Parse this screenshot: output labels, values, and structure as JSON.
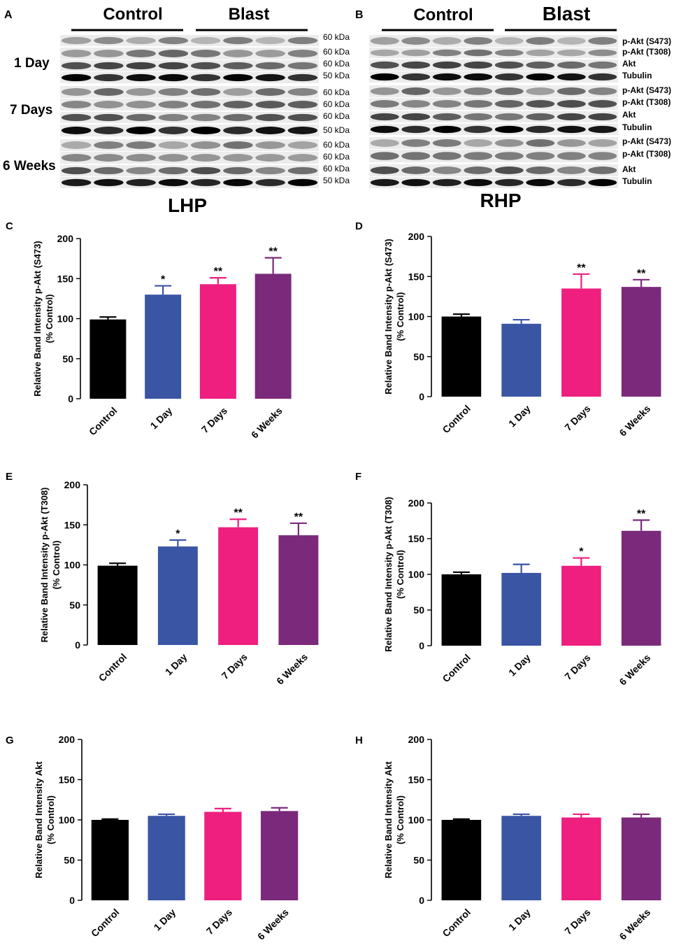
{
  "colors": {
    "Control": "#000000",
    "1 Day": "#3a55a4",
    "7 Days": "#ee1f7f",
    "6 Weeks": "#7b2a7b"
  },
  "blots": {
    "A": {
      "panel_letter": "A",
      "group_labels": [
        "Control",
        "Blast"
      ],
      "kda_labels": [
        "60 kDa",
        "60 kDa",
        "60 kDa",
        "50 kDa",
        "60 kDa",
        "60 kDa",
        "60 kDa",
        "50 kDa",
        "60 kDa",
        "60 kDa",
        "60 kDa",
        "50 kDa"
      ],
      "timepoints": [
        "1 Day",
        "7 Days",
        "6 Weeks"
      ],
      "region": "LHP"
    },
    "B": {
      "panel_letter": "B",
      "group_labels": [
        "Control",
        "Blast"
      ],
      "protein_labels": [
        "p-Akt (S473)",
        "p-Akt (T308)",
        "Akt",
        "Tubulin",
        "p-Akt (S473)",
        "p-Akt (T308)",
        "Akt",
        "Tubulin",
        "p-Akt (S473)",
        "p-Akt (T308)",
        "Akt",
        "Tubulin"
      ],
      "region": "RHP"
    }
  },
  "chart_data": [
    {
      "panel": "C",
      "type": "bar",
      "region": "LHP",
      "categories": [
        "Control",
        "1 Day",
        "7 Days",
        "6 Weeks"
      ],
      "values": [
        99,
        130,
        143,
        156
      ],
      "errors": [
        3,
        11,
        8,
        20
      ],
      "significance": [
        "",
        "*",
        "**",
        "**"
      ],
      "ylabel_line1": "Relative Band Intensity p-Akt (S473)",
      "ylabel_line2": "(% Control)",
      "ylim": [
        0,
        200
      ],
      "yticks": [
        "0",
        "50",
        "100",
        "150",
        "200"
      ]
    },
    {
      "panel": "D",
      "type": "bar",
      "region": "RHP",
      "categories": [
        "Control",
        "1 Day",
        "7 Days",
        "6 Weeks"
      ],
      "values": [
        100,
        91,
        135,
        137
      ],
      "errors": [
        3,
        5,
        18,
        9
      ],
      "significance": [
        "",
        "",
        "**",
        "**"
      ],
      "ylabel_line1": "Relative Band Intensity p-Akt (S473)",
      "ylabel_line2": "(% Control)",
      "ylim": [
        0,
        200
      ],
      "yticks": [
        "0",
        "50",
        "100",
        "150",
        "200"
      ]
    },
    {
      "panel": "E",
      "type": "bar",
      "region": "LHP",
      "categories": [
        "Control",
        "1 Day",
        "7 Days",
        "6 Weeks"
      ],
      "values": [
        99,
        123,
        147,
        137
      ],
      "errors": [
        3,
        8,
        10,
        15
      ],
      "significance": [
        "",
        "*",
        "**",
        "**"
      ],
      "ylabel_line1": "Relative Band Intensity p-Akt (T308)",
      "ylabel_line2": "(% Control)",
      "ylim": [
        0,
        200
      ],
      "yticks": [
        "0",
        "50",
        "100",
        "150",
        "200"
      ]
    },
    {
      "panel": "F",
      "type": "bar",
      "region": "RHP",
      "categories": [
        "Control",
        "1 Day",
        "7 Days",
        "6 Weeks"
      ],
      "values": [
        100,
        102,
        112,
        161
      ],
      "errors": [
        3,
        12,
        11,
        15
      ],
      "significance": [
        "",
        "",
        "*",
        "**"
      ],
      "ylabel_line1": "Relative Band Intensity p-Akt (T308)",
      "ylabel_line2": "(% Control)",
      "ylim": [
        0,
        200
      ],
      "yticks": [
        "0",
        "50",
        "100",
        "150",
        "200"
      ]
    },
    {
      "panel": "G",
      "type": "bar",
      "region": "LHP",
      "categories": [
        "Control",
        "1 Day",
        "7 Days",
        "6 Weeks"
      ],
      "values": [
        100,
        105,
        110,
        111
      ],
      "errors": [
        1,
        2,
        4,
        4
      ],
      "significance": [
        "",
        "",
        "",
        ""
      ],
      "ylabel_line1": "Relative Band Intensity Akt",
      "ylabel_line2": "(% Control)",
      "ylim": [
        0,
        200
      ],
      "yticks": [
        "0",
        "50",
        "100",
        "150",
        "200"
      ]
    },
    {
      "panel": "H",
      "type": "bar",
      "region": "RHP",
      "categories": [
        "Control",
        "1 Day",
        "7 Days",
        "6 Weeks"
      ],
      "values": [
        100,
        105,
        103,
        103
      ],
      "errors": [
        1,
        2,
        4,
        4
      ],
      "significance": [
        "",
        "",
        "",
        ""
      ],
      "ylabel_line1": "Relative Band Intensity Akt",
      "ylabel_line2": "(% Control)",
      "ylim": [
        0,
        200
      ],
      "yticks": [
        "0",
        "50",
        "100",
        "150",
        "200"
      ]
    }
  ]
}
